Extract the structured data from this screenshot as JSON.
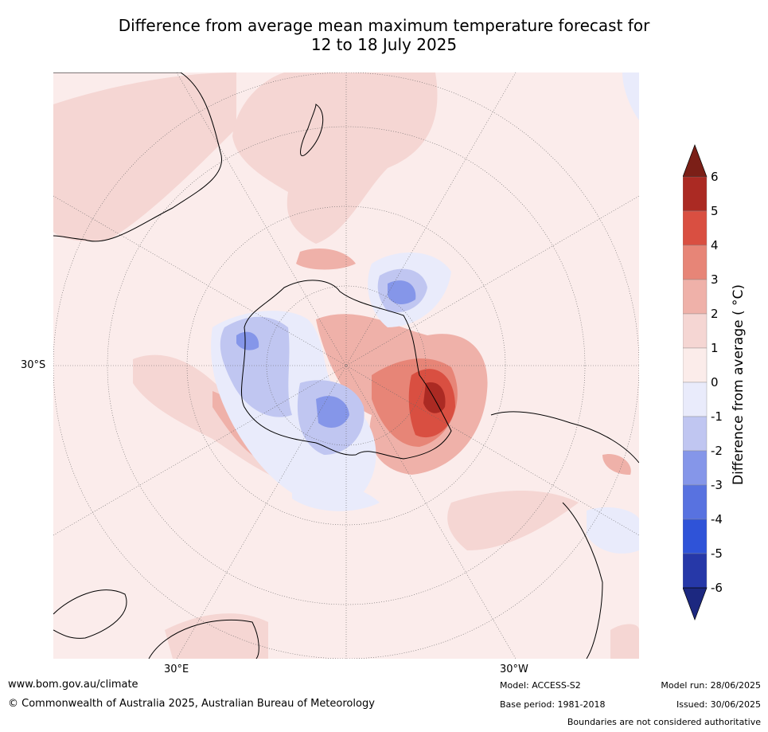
{
  "title_line1": "Difference from average mean maximum temperature forecast for",
  "title_line2": "12 to 18 July 2025",
  "graticule": {
    "lat_label": "30°S",
    "lon_label_east": "30°E",
    "lon_label_west": "30°W"
  },
  "colorbar": {
    "label": "Difference from average ( °C)",
    "ticks": [
      "6",
      "5",
      "4",
      "3",
      "2",
      "1",
      "0",
      "-1",
      "-2",
      "-3",
      "-4",
      "-5",
      "-6"
    ],
    "colors": [
      "#7b1f17",
      "#ab2a23",
      "#d94f41",
      "#e78577",
      "#efb1a9",
      "#f5d6d3",
      "#fbecea",
      "#e9ebfb",
      "#c0c6f1",
      "#8596e9",
      "#5872e0",
      "#2f53d8",
      "#2638a8",
      "#1c2880"
    ]
  },
  "footer": {
    "url": "www.bom.gov.au/climate",
    "copyright": "© Commonwealth of Australia 2025, Australian Bureau of Meteorology",
    "model": "Model: ACCESS-S2",
    "base_period": "Base period: 1981-2018",
    "model_run": "Model run: 28/06/2025",
    "issued": "Issued: 30/06/2025",
    "disclaimer": "Boundaries are not considered authoritative"
  }
}
